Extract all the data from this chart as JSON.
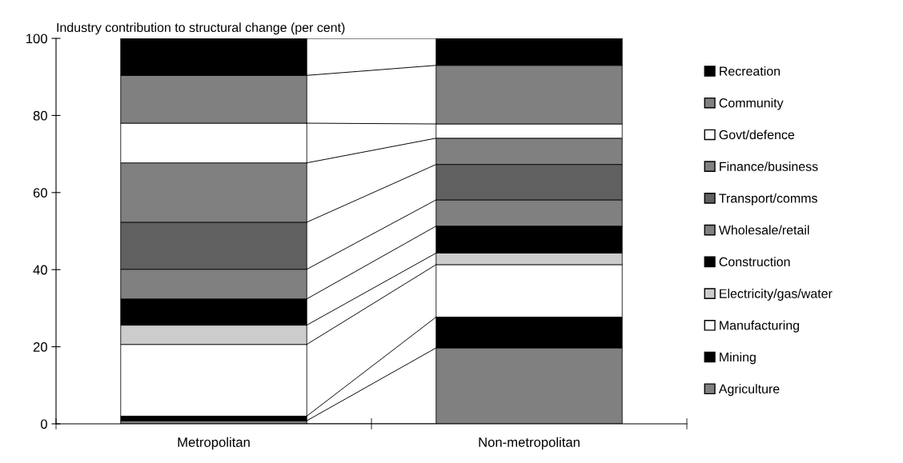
{
  "chart_data": {
    "type": "bar",
    "stacked": true,
    "ylabel": "Industry contribution to structural change (per cent)",
    "categories": [
      "Metropolitan",
      "Non-metropolitan"
    ],
    "ylim": [
      0,
      100
    ],
    "yticks": [
      0,
      20,
      40,
      60,
      80,
      100
    ],
    "grid": false,
    "legend": "right",
    "series": [
      {
        "name": "Agriculture",
        "color": "#808080",
        "values": [
          0.8,
          19.7
        ]
      },
      {
        "name": "Mining",
        "color": "#000000",
        "values": [
          1.2,
          8.0
        ]
      },
      {
        "name": "Manufacturing",
        "color": "#ffffff",
        "values": [
          18.6,
          13.6
        ]
      },
      {
        "name": "Electricity/gas/water",
        "color": "#cccccc",
        "values": [
          5.0,
          3.0
        ]
      },
      {
        "name": "Construction",
        "color": "#000000",
        "values": [
          6.8,
          7.0
        ]
      },
      {
        "name": "Wholesale/retail",
        "color": "#808080",
        "values": [
          7.7,
          6.8
        ]
      },
      {
        "name": "Transport/comms",
        "color": "#606060",
        "values": [
          12.2,
          9.2
        ]
      },
      {
        "name": "Finance/business",
        "color": "#808080",
        "values": [
          15.4,
          6.8
        ]
      },
      {
        "name": "Govt/defence",
        "color": "#ffffff",
        "values": [
          10.3,
          3.7
        ]
      },
      {
        "name": "Community",
        "color": "#808080",
        "values": [
          12.4,
          15.2
        ]
      },
      {
        "name": "Recreation",
        "color": "#000000",
        "values": [
          9.6,
          7.0
        ]
      }
    ]
  }
}
